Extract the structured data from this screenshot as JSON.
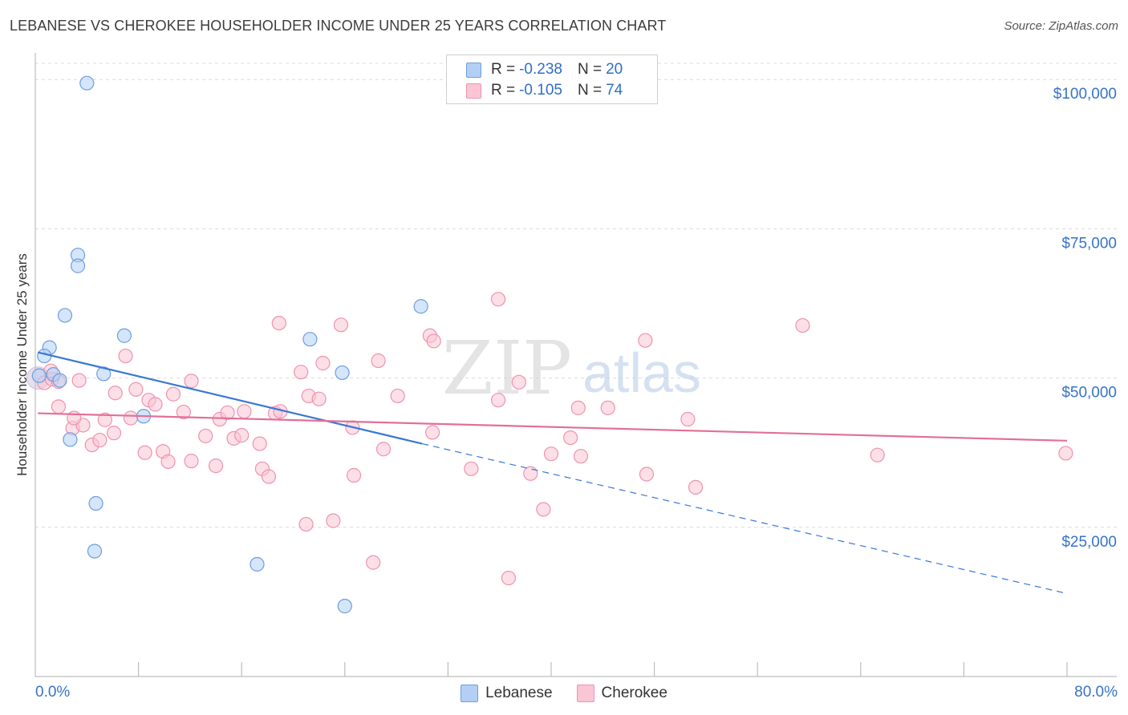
{
  "title": "LEBANESE VS CHEROKEE HOUSEHOLDER INCOME UNDER 25 YEARS CORRELATION CHART",
  "source": "Source: ZipAtlas.com",
  "watermark": {
    "bold": "ZIP",
    "light": "atlas"
  },
  "legend_stats": [
    {
      "r_label": "R =",
      "r_value": "-0.238",
      "n_label": "N =",
      "n_value": "20",
      "color": "#b3cff5",
      "border": "#6d9ee0"
    },
    {
      "r_label": "R =",
      "r_value": "-0.105",
      "n_label": "N =",
      "n_value": "74",
      "color": "#fac5d4",
      "border": "#ee93ae"
    }
  ],
  "chart_data": {
    "type": "scatter",
    "title": "LEBANESE VS CHEROKEE HOUSEHOLDER INCOME UNDER 25 YEARS CORRELATION CHART",
    "xlabel": "",
    "ylabel": "Householder Income Under 25 years",
    "xlim": [
      0,
      80
    ],
    "ylim": [
      0,
      105000
    ],
    "x_tick_labels": [
      "0.0%",
      "80.0%"
    ],
    "y_ticks": [
      {
        "value": 25000,
        "label": "$25,000"
      },
      {
        "value": 50000,
        "label": "$50,000"
      },
      {
        "value": 75000,
        "label": "$75,000"
      },
      {
        "value": 100000,
        "label": "$100,000"
      }
    ],
    "grid": true,
    "legend_position": "bottom-center",
    "series": [
      {
        "name": "Lebanese",
        "color": "#b3cff5",
        "edge": "#6d9ee0",
        "line_color": "#3a78d4",
        "trend": {
          "x0": 0.2,
          "y0": 54300,
          "x1": 30.0,
          "y1": 39000,
          "dash_to_x": 80.0,
          "dash_to_y": 13900
        },
        "points": [
          [
            4.0,
            99400
          ],
          [
            3.3,
            70600
          ],
          [
            3.3,
            68800
          ],
          [
            2.3,
            60500
          ],
          [
            1.1,
            55100
          ],
          [
            0.7,
            53700
          ],
          [
            0.3,
            50400
          ],
          [
            1.4,
            50600
          ],
          [
            1.9,
            49600
          ],
          [
            5.3,
            50700
          ],
          [
            6.9,
            57100
          ],
          [
            21.3,
            56500
          ],
          [
            23.8,
            50900
          ],
          [
            29.9,
            62000
          ],
          [
            8.4,
            43600
          ],
          [
            2.7,
            39700
          ],
          [
            4.7,
            29000
          ],
          [
            4.6,
            21000
          ],
          [
            17.2,
            18800
          ],
          [
            24.0,
            11800
          ]
        ]
      },
      {
        "name": "Cherokee",
        "color": "#fac5d4",
        "edge": "#ee93ae",
        "line_color": "#e36f96",
        "trend": {
          "x0": 0.2,
          "y0": 44100,
          "x1": 80.0,
          "y1": 39500
        },
        "points": [
          [
            0.7,
            49200
          ],
          [
            1.3,
            49800
          ],
          [
            1.8,
            49400
          ],
          [
            3.4,
            49600
          ],
          [
            6.2,
            47500
          ],
          [
            7.0,
            53700
          ],
          [
            7.8,
            48100
          ],
          [
            8.8,
            46300
          ],
          [
            9.3,
            45600
          ],
          [
            10.7,
            47300
          ],
          [
            12.1,
            49500
          ],
          [
            18.9,
            59200
          ],
          [
            20.6,
            51000
          ],
          [
            21.2,
            47000
          ],
          [
            22.0,
            46500
          ],
          [
            22.3,
            52500
          ],
          [
            23.7,
            58900
          ],
          [
            26.6,
            52900
          ],
          [
            28.1,
            47000
          ],
          [
            30.6,
            57100
          ],
          [
            30.9,
            56200
          ],
          [
            35.9,
            46300
          ],
          [
            35.9,
            63200
          ],
          [
            37.5,
            49300
          ],
          [
            42.1,
            45000
          ],
          [
            44.4,
            45000
          ],
          [
            47.3,
            56300
          ],
          [
            50.6,
            43100
          ],
          [
            59.5,
            58800
          ],
          [
            1.8,
            45200
          ],
          [
            2.9,
            41600
          ],
          [
            3.7,
            42100
          ],
          [
            4.4,
            38800
          ],
          [
            5.0,
            39600
          ],
          [
            5.4,
            43000
          ],
          [
            6.1,
            40800
          ],
          [
            7.4,
            43300
          ],
          [
            8.5,
            37500
          ],
          [
            9.9,
            37700
          ],
          [
            10.3,
            36000
          ],
          [
            11.5,
            44300
          ],
          [
            12.1,
            36100
          ],
          [
            13.2,
            40300
          ],
          [
            14.0,
            35300
          ],
          [
            14.3,
            43100
          ],
          [
            14.9,
            44200
          ],
          [
            15.4,
            39900
          ],
          [
            16.0,
            40400
          ],
          [
            16.2,
            44400
          ],
          [
            17.4,
            39000
          ],
          [
            17.6,
            34800
          ],
          [
            18.1,
            33500
          ],
          [
            18.6,
            44100
          ],
          [
            19.0,
            44400
          ],
          [
            21.0,
            25500
          ],
          [
            23.1,
            26100
          ],
          [
            24.6,
            41700
          ],
          [
            24.7,
            33700
          ],
          [
            26.2,
            19100
          ],
          [
            27.0,
            38100
          ],
          [
            30.8,
            40900
          ],
          [
            33.8,
            34800
          ],
          [
            36.7,
            16500
          ],
          [
            38.4,
            34000
          ],
          [
            39.4,
            28000
          ],
          [
            40.0,
            37300
          ],
          [
            41.5,
            40000
          ],
          [
            42.3,
            36900
          ],
          [
            47.4,
            33900
          ],
          [
            51.2,
            31700
          ],
          [
            3.0,
            43300
          ],
          [
            1.2,
            51200
          ],
          [
            65.3,
            37100
          ],
          [
            79.9,
            37400
          ]
        ]
      }
    ]
  }
}
